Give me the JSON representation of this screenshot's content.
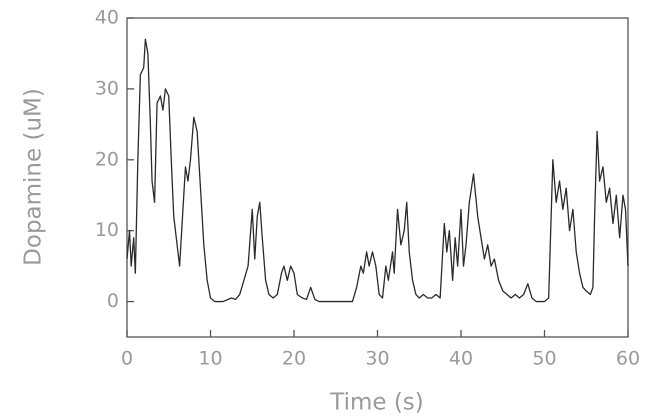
{
  "chart_data": {
    "type": "line",
    "xlabel": "Time (s)",
    "ylabel": "Dopamine (uM)",
    "color": "#2a2a2a",
    "xlim": [
      0,
      60
    ],
    "xticks": [
      0,
      10,
      20,
      30,
      40,
      50,
      60
    ],
    "ylim": [
      -5,
      40
    ],
    "yticks": [
      0,
      10,
      20,
      30,
      40
    ],
    "grid": false,
    "x": [
      0,
      0.3,
      0.5,
      0.8,
      1.0,
      1.3,
      1.6,
      2.0,
      2.2,
      2.5,
      2.8,
      3.0,
      3.3,
      3.6,
      4.0,
      4.3,
      4.6,
      5.0,
      5.3,
      5.6,
      6.0,
      6.3,
      6.6,
      7.0,
      7.3,
      7.6,
      8.0,
      8.4,
      8.8,
      9.2,
      9.6,
      10.0,
      10.5,
      11.5,
      12.5,
      13,
      13.5,
      14,
      14.5,
      15,
      15.3,
      15.6,
      15.9,
      16.2,
      16.6,
      17,
      17.5,
      18,
      18.5,
      18.8,
      19.2,
      19.6,
      20,
      20.4,
      21,
      21.5,
      22,
      22.5,
      23,
      27,
      27.5,
      28,
      28.3,
      28.7,
      29,
      29.4,
      29.8,
      30.2,
      30.6,
      31,
      31.3,
      31.8,
      32,
      32.4,
      32.8,
      33.2,
      33.5,
      33.8,
      34.2,
      34.6,
      35,
      35.5,
      36,
      36.5,
      37,
      37.5,
      38,
      38.3,
      38.6,
      39,
      39.3,
      39.6,
      40,
      40.3,
      40.6,
      41,
      41.5,
      42,
      42.4,
      42.8,
      43.2,
      43.6,
      44,
      44.5,
      45,
      45.5,
      46,
      46.5,
      47,
      47.5,
      48,
      48.5,
      49,
      50,
      50.5,
      51,
      51.4,
      51.8,
      52.2,
      52.6,
      53,
      53.4,
      53.8,
      54.2,
      54.6,
      55,
      55.5,
      55.8,
      56,
      56.3,
      56.6,
      57,
      57.4,
      57.8,
      58.2,
      58.6,
      59,
      59.4,
      59.7,
      60
    ],
    "values": [
      6,
      10,
      5,
      9,
      4,
      20,
      32,
      33,
      37,
      35,
      25,
      17,
      14,
      28,
      29,
      27,
      30,
      29,
      20,
      12,
      8,
      5,
      11,
      19,
      17,
      20,
      26,
      24,
      16,
      8,
      3,
      0.5,
      0,
      0,
      0.5,
      0.3,
      1,
      3,
      5,
      13,
      6,
      12,
      14,
      9,
      3,
      1,
      0.5,
      1,
      4,
      5,
      3,
      5,
      4,
      1,
      0.5,
      0.3,
      2,
      0.3,
      0,
      0,
      2,
      5,
      4,
      7,
      5,
      7,
      5,
      1,
      0.5,
      5,
      3,
      7,
      4,
      13,
      8,
      10,
      14,
      7,
      3,
      1,
      0.5,
      1,
      0.5,
      0.5,
      1,
      0.5,
      11,
      7,
      10,
      3,
      9,
      5,
      13,
      5,
      8,
      14,
      18,
      12,
      9,
      6,
      8,
      5,
      6,
      3,
      1.5,
      1,
      0.5,
      1,
      0.5,
      1,
      2.5,
      0.5,
      0,
      0,
      0.5,
      20,
      14,
      17,
      13,
      16,
      10,
      13,
      7,
      4,
      2,
      1.5,
      1,
      2,
      12,
      24,
      17,
      19,
      14,
      16,
      11,
      15,
      9,
      15,
      13,
      5
    ]
  }
}
